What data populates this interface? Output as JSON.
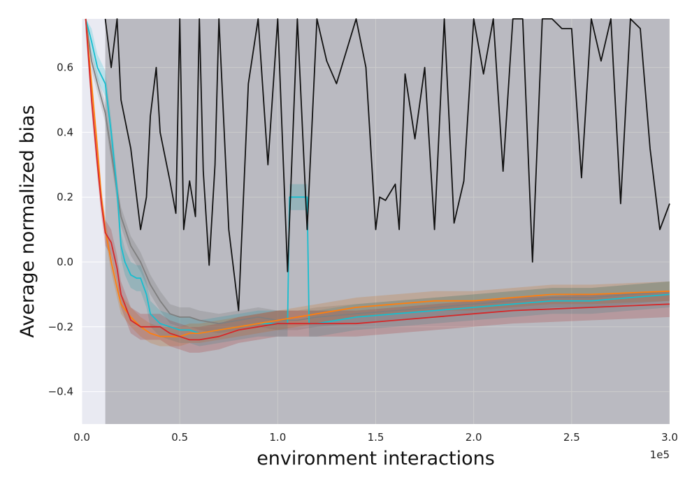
{
  "chart_data": {
    "type": "line",
    "xlabel": "environment interactions",
    "ylabel": "Average normalized bias",
    "x_offset_label": "1e5",
    "xlim": [
      0,
      3.0
    ],
    "ylim": [
      -0.5,
      0.75
    ],
    "xticks": [
      0.0,
      0.5,
      1.0,
      1.5,
      2.0,
      2.5,
      3.0
    ],
    "xtick_labels": [
      "0.0",
      "0.5",
      "1.0",
      "1.5",
      "2.0",
      "2.5",
      "3.0"
    ],
    "yticks": [
      -0.4,
      -0.2,
      0.0,
      0.2,
      0.4,
      0.6
    ],
    "ytick_labels": [
      "−0.4",
      "−0.2",
      "0.0",
      "0.2",
      "0.4",
      "0.6"
    ],
    "grid": true,
    "background": "#e9eaf2",
    "series": [
      {
        "color": "#7f7f7f",
        "x": [
          0.02,
          0.05,
          0.08,
          0.12,
          0.16,
          0.2,
          0.25,
          0.3,
          0.35,
          0.4,
          0.45,
          0.5,
          0.55,
          0.6,
          0.7,
          0.8,
          0.9,
          1.0,
          1.1,
          1.2,
          1.4,
          1.6,
          1.8,
          2.0,
          2.2,
          2.4,
          2.6,
          2.8,
          3.0
        ],
        "y": [
          0.75,
          0.62,
          0.55,
          0.46,
          0.3,
          0.14,
          0.05,
          0.0,
          -0.07,
          -0.12,
          -0.16,
          -0.17,
          -0.17,
          -0.18,
          -0.19,
          -0.18,
          -0.17,
          -0.18,
          -0.18,
          -0.17,
          -0.16,
          -0.15,
          -0.14,
          -0.13,
          -0.12,
          -0.11,
          -0.11,
          -0.1,
          -0.09
        ],
        "band": 0.03
      },
      {
        "color": "#17becf",
        "x": [
          0.02,
          0.05,
          0.08,
          0.12,
          0.15,
          0.18,
          0.2,
          0.22,
          0.25,
          0.28,
          0.3,
          0.33,
          0.35,
          0.4,
          0.45,
          0.5,
          0.55,
          0.6,
          0.7,
          0.8,
          0.9,
          1.0,
          1.05,
          1.06,
          1.15,
          1.16,
          1.2,
          1.4,
          1.6,
          1.8,
          2.0,
          2.2,
          2.4,
          2.6,
          2.8,
          3.0
        ],
        "y": [
          0.75,
          0.68,
          0.6,
          0.55,
          0.4,
          0.22,
          0.05,
          0.0,
          -0.04,
          -0.05,
          -0.05,
          -0.1,
          -0.16,
          -0.19,
          -0.2,
          -0.21,
          -0.21,
          -0.22,
          -0.21,
          -0.2,
          -0.19,
          -0.19,
          -0.19,
          0.2,
          0.2,
          -0.19,
          -0.19,
          -0.17,
          -0.16,
          -0.15,
          -0.14,
          -0.13,
          -0.12,
          -0.12,
          -0.11,
          -0.1
        ],
        "band": 0.04
      },
      {
        "color": "#ff7f0e",
        "x": [
          0.02,
          0.05,
          0.08,
          0.1,
          0.12,
          0.15,
          0.18,
          0.2,
          0.25,
          0.3,
          0.35,
          0.4,
          0.45,
          0.5,
          0.55,
          0.6,
          0.7,
          0.8,
          0.9,
          1.0,
          1.1,
          1.2,
          1.4,
          1.6,
          1.8,
          2.0,
          2.2,
          2.4,
          2.6,
          2.8,
          3.0
        ],
        "y": [
          0.75,
          0.55,
          0.35,
          0.2,
          0.1,
          0.0,
          -0.08,
          -0.13,
          -0.17,
          -0.2,
          -0.22,
          -0.23,
          -0.23,
          -0.23,
          -0.22,
          -0.22,
          -0.21,
          -0.2,
          -0.19,
          -0.18,
          -0.17,
          -0.16,
          -0.14,
          -0.13,
          -0.12,
          -0.12,
          -0.11,
          -0.1,
          -0.1,
          -0.095,
          -0.09
        ],
        "band": 0.03
      },
      {
        "color": "#d62728",
        "x": [
          0.02,
          0.05,
          0.08,
          0.1,
          0.12,
          0.15,
          0.18,
          0.2,
          0.25,
          0.3,
          0.35,
          0.4,
          0.45,
          0.5,
          0.55,
          0.6,
          0.7,
          0.8,
          0.9,
          1.0,
          1.1,
          1.2,
          1.4,
          1.6,
          1.8,
          2.0,
          2.2,
          2.4,
          2.6,
          2.8,
          3.0
        ],
        "y": [
          0.75,
          0.5,
          0.3,
          0.18,
          0.09,
          0.06,
          -0.02,
          -0.1,
          -0.18,
          -0.2,
          -0.2,
          -0.2,
          -0.22,
          -0.23,
          -0.24,
          -0.24,
          -0.23,
          -0.21,
          -0.2,
          -0.19,
          -0.19,
          -0.19,
          -0.19,
          -0.18,
          -0.17,
          -0.16,
          -0.15,
          -0.145,
          -0.14,
          -0.135,
          -0.13
        ],
        "band": 0.04
      },
      {
        "color": "#111111",
        "x": [
          0.12,
          0.15,
          0.18,
          0.2,
          0.25,
          0.3,
          0.33,
          0.35,
          0.38,
          0.4,
          0.45,
          0.48,
          0.5,
          0.52,
          0.55,
          0.58,
          0.6,
          0.62,
          0.65,
          0.68,
          0.7,
          0.75,
          0.8,
          0.85,
          0.9,
          0.95,
          1.0,
          1.05,
          1.1,
          1.15,
          1.2,
          1.25,
          1.3,
          1.4,
          1.45,
          1.5,
          1.52,
          1.55,
          1.6,
          1.62,
          1.65,
          1.7,
          1.75,
          1.8,
          1.85,
          1.9,
          1.95,
          2.0,
          2.05,
          2.1,
          2.15,
          2.2,
          2.25,
          2.3,
          2.35,
          2.4,
          2.45,
          2.5,
          2.55,
          2.6,
          2.65,
          2.7,
          2.75,
          2.8,
          2.85,
          2.9,
          2.95,
          3.0
        ],
        "y": [
          0.75,
          0.6,
          0.75,
          0.5,
          0.35,
          0.1,
          0.2,
          0.45,
          0.6,
          0.4,
          0.25,
          0.15,
          0.75,
          0.1,
          0.25,
          0.14,
          0.75,
          0.28,
          -0.01,
          0.3,
          0.75,
          0.1,
          -0.15,
          0.55,
          0.75,
          0.3,
          0.75,
          -0.03,
          0.75,
          0.1,
          0.75,
          0.62,
          0.55,
          0.75,
          0.6,
          0.1,
          0.2,
          0.19,
          0.24,
          0.1,
          0.58,
          0.38,
          0.6,
          0.1,
          0.75,
          0.12,
          0.25,
          0.75,
          0.58,
          0.75,
          0.28,
          0.75,
          0.75,
          0.0,
          0.75,
          0.75,
          0.72,
          0.72,
          0.26,
          0.75,
          0.62,
          0.75,
          0.18,
          0.75,
          0.72,
          0.35,
          0.1,
          0.18
        ],
        "band_low": -0.5,
        "band_high": 0.75
      }
    ]
  }
}
